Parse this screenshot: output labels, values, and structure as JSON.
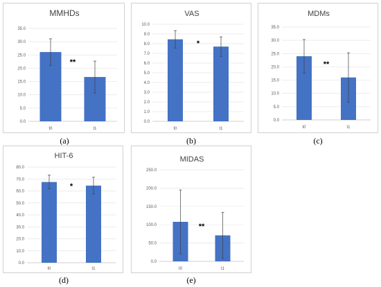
{
  "chart_data": [
    {
      "type": "bar",
      "title": "MMHDs",
      "caption": "(a)",
      "categories": [
        "t0",
        "t1"
      ],
      "values": [
        26.1,
        16.7
      ],
      "errors": [
        5.0,
        6.0
      ],
      "ylim": [
        0,
        35
      ],
      "yticks": [
        "0.0",
        "5.0",
        "10.0",
        "15.0",
        "20.0",
        "25.0",
        "30.0",
        "35.0"
      ],
      "significance": "**",
      "grid": true,
      "color": "#4472C4"
    },
    {
      "type": "bar",
      "title": "VAS",
      "caption": "(b)",
      "categories": [
        "t0",
        "t1"
      ],
      "values": [
        8.45,
        7.7
      ],
      "errors": [
        0.9,
        1.0
      ],
      "ylim": [
        0,
        10
      ],
      "yticks": [
        "0.0",
        "1.0",
        "2.0",
        "3.0",
        "4.0",
        "5.0",
        "6.0",
        "7.0",
        "8.0",
        "9.0",
        "10.0"
      ],
      "significance": "*",
      "grid": true,
      "color": "#4472C4"
    },
    {
      "type": "bar",
      "title": "MDMs",
      "caption": "(c)",
      "categories": [
        "t0",
        "t1"
      ],
      "values": [
        24.0,
        16.0
      ],
      "errors": [
        6.3,
        9.3
      ],
      "ylim": [
        0,
        35
      ],
      "yticks": [
        "0.0",
        "5.0",
        "10.0",
        "15.0",
        "20.0",
        "25.0",
        "30.0",
        "35.0"
      ],
      "significance": "**",
      "grid": true,
      "color": "#4472C4"
    },
    {
      "type": "bar",
      "title": "HIT-6",
      "caption": "(d)",
      "categories": [
        "t0",
        "t1"
      ],
      "values": [
        67.5,
        64.5
      ],
      "errors": [
        5.8,
        7.0
      ],
      "ylim": [
        0,
        80
      ],
      "yticks": [
        "0.0",
        "10.0",
        "20.0",
        "30.0",
        "40.0",
        "50.0",
        "60.0",
        "70.0",
        "80.0"
      ],
      "significance": "*",
      "grid": true,
      "color": "#4472C4"
    },
    {
      "type": "bar",
      "title": "MIDAS",
      "caption": "(e)",
      "categories": [
        "t0",
        "t1"
      ],
      "values": [
        108.0,
        71.0
      ],
      "errors": [
        87.0,
        63.0
      ],
      "ylim": [
        0,
        250
      ],
      "yticks": [
        "0.0",
        "50.0",
        "100.0",
        "150.0",
        "200.0",
        "250.0"
      ],
      "significance": "**",
      "grid": true,
      "color": "#4472C4"
    }
  ]
}
